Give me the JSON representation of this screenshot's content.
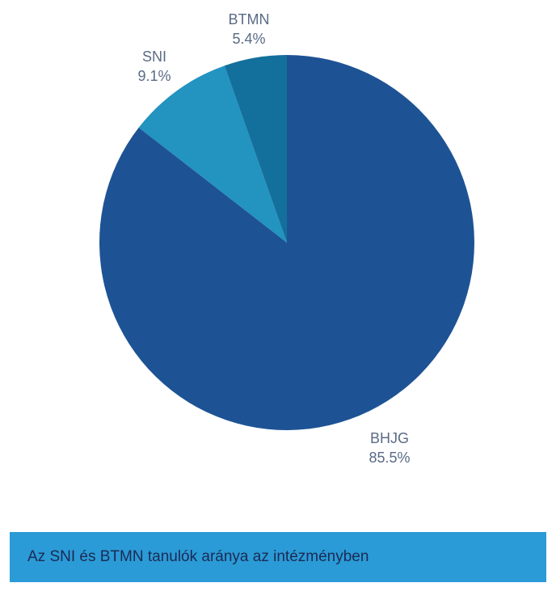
{
  "chart_data": {
    "type": "pie",
    "slices": [
      {
        "label": "BHJG",
        "percent_text": "85.5%",
        "value": 85.5,
        "color": "#1d5394"
      },
      {
        "label": "SNI",
        "percent_text": "9.1%",
        "value": 9.1,
        "color": "#2393c0"
      },
      {
        "label": "BTMN",
        "percent_text": "5.4%",
        "value": 5.4,
        "color": "#13709c"
      }
    ],
    "start": "top",
    "direction": "clockwise",
    "order": [
      "BHJG",
      "SNI",
      "BTMN"
    ]
  },
  "caption": {
    "text": "Az SNI és BTMN tanulók aránya az intézményben",
    "background": "#2a9bd6"
  }
}
